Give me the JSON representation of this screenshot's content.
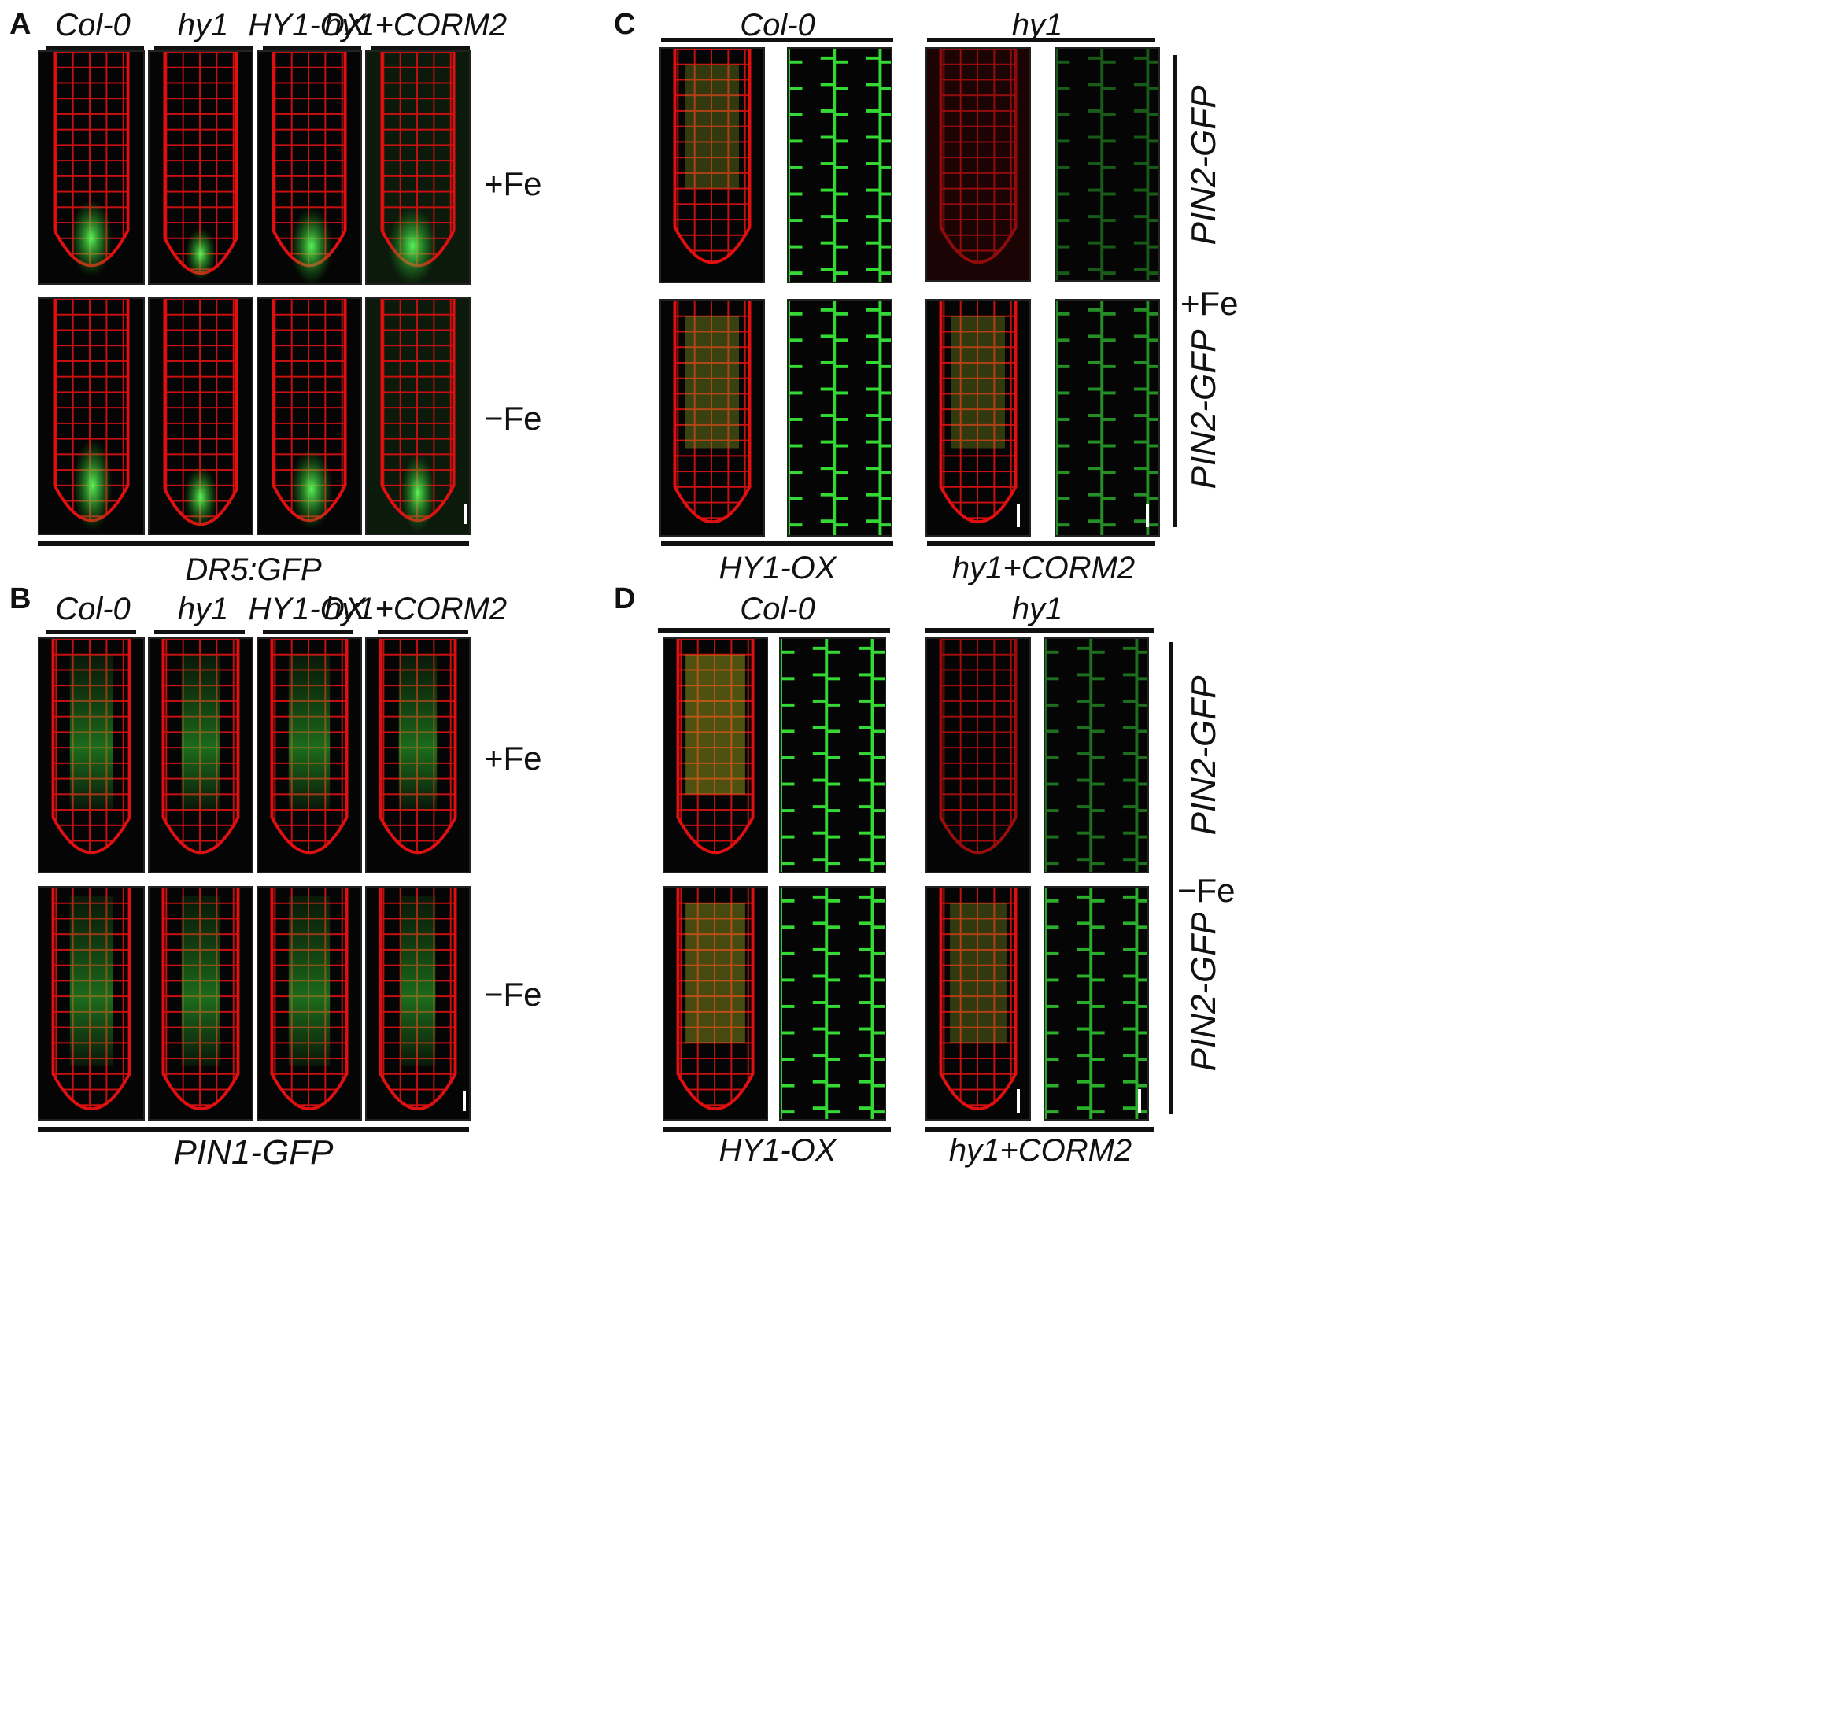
{
  "panels": {
    "A": {
      "letter": "A",
      "genotypes": [
        "Col-0",
        "hy1",
        "HY1-OX",
        "hy1+CORM2"
      ],
      "conditions": [
        "+Fe",
        "−Fe"
      ],
      "marker": "DR5:GFP"
    },
    "B": {
      "letter": "B",
      "genotypes": [
        "Col-0",
        "hy1",
        "HY1-OX",
        "hy1+CORM2"
      ],
      "conditions": [
        "+Fe",
        "−Fe"
      ],
      "marker": "PIN1-GFP"
    },
    "C": {
      "letter": "C",
      "top_genotypes": [
        "Col-0",
        "hy1"
      ],
      "bottom_genotypes": [
        "HY1-OX",
        "hy1+CORM2"
      ],
      "side_labels": [
        "PIN2-GFP",
        "PIN2-GFP"
      ],
      "condition": "+Fe"
    },
    "D": {
      "letter": "D",
      "top_genotypes": [
        "Col-0",
        "hy1"
      ],
      "bottom_genotypes": [
        "HY1-OX",
        "hy1+CORM2"
      ],
      "side_labels": [
        "PIN2-GFP",
        "PIN2-GFP"
      ],
      "condition": "−Fe"
    }
  },
  "colors": {
    "cell_wall": "#e01010",
    "gfp": "#2fd12f",
    "background": "#050505"
  },
  "image_types": {
    "root_tip": "confocal root tip, red cell walls with green GFP signal",
    "gfp_zoom": "magnified GFP-only channel, green cell outlines"
  }
}
